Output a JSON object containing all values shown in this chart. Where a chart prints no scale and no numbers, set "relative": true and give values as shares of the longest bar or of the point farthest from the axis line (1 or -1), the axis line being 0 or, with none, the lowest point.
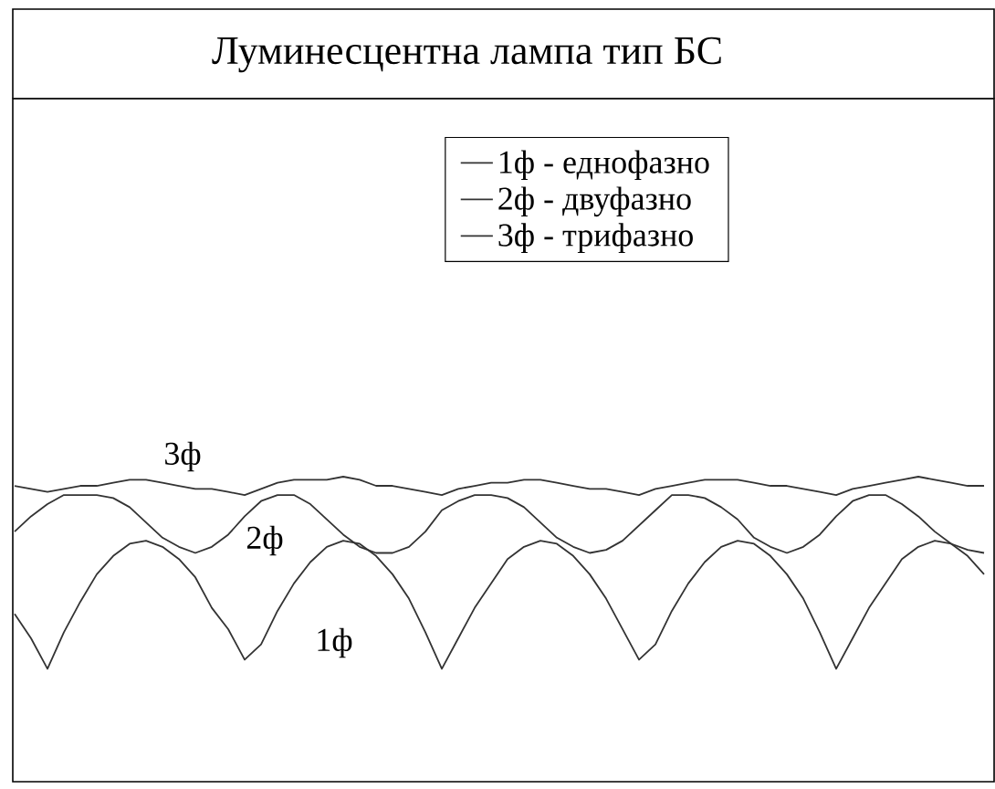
{
  "chart_data": {
    "type": "line",
    "title": "Луминесцентна лампа тип БС",
    "relative": true,
    "legend": "top",
    "marker": "none",
    "line_style": "solid",
    "categories": [
      null,
      null,
      null,
      null,
      null,
      null,
      null,
      null,
      null,
      null,
      null,
      null,
      null,
      null,
      null,
      null,
      null,
      null,
      null,
      null,
      null,
      null,
      null,
      null,
      null,
      null,
      null,
      null,
      null,
      null,
      null,
      null,
      null,
      null,
      null,
      null,
      null,
      null,
      null,
      null,
      null,
      null,
      null,
      null,
      null,
      null,
      null,
      null,
      null,
      null,
      null,
      null,
      null,
      null,
      null,
      null,
      null,
      null,
      null,
      null
    ],
    "series": [
      {
        "name": "1ф - еднофазно",
        "color": "#333333",
        "values": [
          0.55,
          0.47,
          0.37,
          0.49,
          0.59,
          0.68,
          0.74,
          0.78,
          0.79,
          0.77,
          0.73,
          0.67,
          0.57,
          0.5,
          0.4,
          0.45,
          0.56,
          0.65,
          0.72,
          0.77,
          0.79,
          0.78,
          0.74,
          0.68,
          0.6,
          0.49,
          0.37,
          0.47,
          0.57,
          0.65,
          0.73,
          0.77,
          0.79,
          0.78,
          0.74,
          0.68,
          0.6,
          0.5,
          0.4,
          0.45,
          0.56,
          0.65,
          0.72,
          0.77,
          0.79,
          0.78,
          0.74,
          0.68,
          0.6,
          0.49,
          0.37,
          0.47,
          0.57,
          0.65,
          0.73,
          0.77,
          0.79,
          0.78,
          0.74,
          0.68
        ]
      },
      {
        "name": "2ф - двуфазно",
        "color": "#333333",
        "values": [
          0.82,
          0.87,
          0.91,
          0.94,
          0.94,
          0.94,
          0.93,
          0.9,
          0.85,
          0.8,
          0.77,
          0.75,
          0.77,
          0.81,
          0.87,
          0.92,
          0.94,
          0.94,
          0.91,
          0.86,
          0.81,
          0.77,
          0.75,
          0.75,
          0.77,
          0.82,
          0.89,
          0.92,
          0.94,
          0.94,
          0.93,
          0.9,
          0.85,
          0.8,
          0.77,
          0.75,
          0.76,
          0.79,
          0.84,
          0.89,
          0.94,
          0.94,
          0.93,
          0.9,
          0.86,
          0.8,
          0.77,
          0.75,
          0.77,
          0.81,
          0.87,
          0.92,
          0.94,
          0.94,
          0.91,
          0.87,
          0.82,
          0.78,
          0.76,
          0.75
        ]
      },
      {
        "name": "3ф - трифазно",
        "color": "#333333",
        "values": [
          0.97,
          0.96,
          0.95,
          0.96,
          0.97,
          0.97,
          0.98,
          0.99,
          0.99,
          0.98,
          0.97,
          0.96,
          0.96,
          0.95,
          0.94,
          0.96,
          0.98,
          0.99,
          0.99,
          0.99,
          1.0,
          0.99,
          0.97,
          0.97,
          0.96,
          0.95,
          0.94,
          0.96,
          0.97,
          0.98,
          0.98,
          0.99,
          0.99,
          0.98,
          0.97,
          0.96,
          0.96,
          0.95,
          0.94,
          0.96,
          0.97,
          0.98,
          0.99,
          0.99,
          0.99,
          0.98,
          0.97,
          0.97,
          0.96,
          0.95,
          0.94,
          0.96,
          0.97,
          0.98,
          0.99,
          1.0,
          0.99,
          0.98,
          0.97,
          0.97
        ]
      }
    ],
    "annotations": [
      "3ф",
      "2ф",
      "1ф"
    ]
  }
}
